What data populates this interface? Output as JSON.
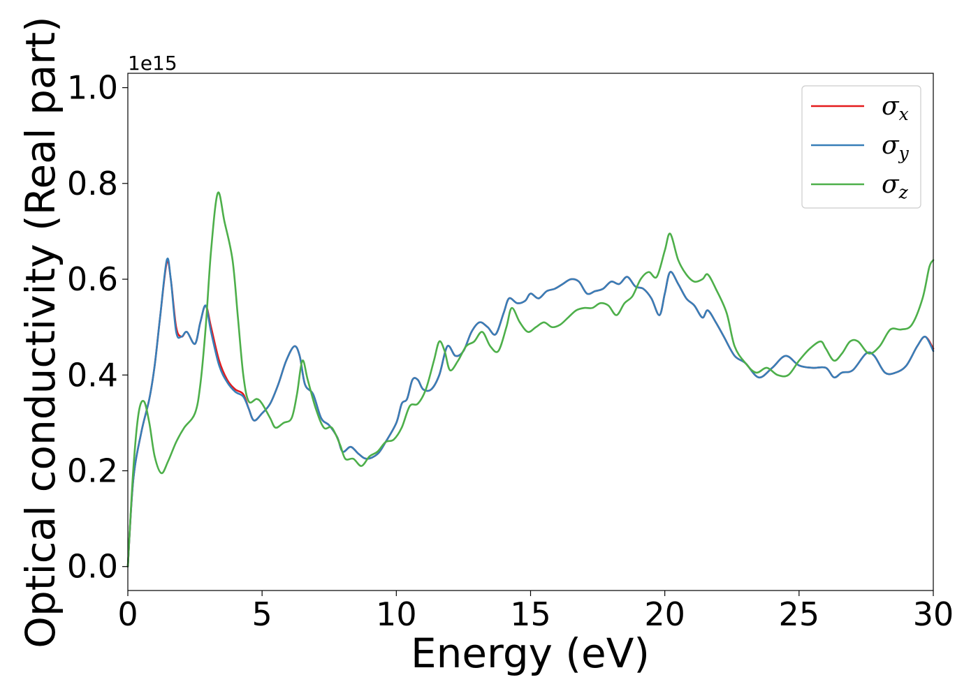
{
  "chart_data": {
    "type": "line",
    "xlabel": "Energy (eV)",
    "ylabel": "Optical conductivity (Real part)",
    "y_offset_label": "1e15",
    "xlim": [
      0,
      30
    ],
    "ylim": [
      -0.05,
      1.03
    ],
    "xticks": [
      0,
      5,
      10,
      15,
      20,
      25,
      30
    ],
    "xtick_labels": [
      "0",
      "5",
      "10",
      "15",
      "20",
      "25",
      "30"
    ],
    "yticks": [
      0.0,
      0.2,
      0.4,
      0.6,
      0.8,
      1.0
    ],
    "ytick_labels": [
      "0.0",
      "0.2",
      "0.4",
      "0.6",
      "0.8",
      "1.0"
    ],
    "grid": false,
    "legend_position": "top-right",
    "series": [
      {
        "name": "σx",
        "sym": "σ",
        "sub": "x",
        "color": "#e41a1c",
        "points": [
          [
            0,
            0.0
          ],
          [
            0.2,
            0.18
          ],
          [
            0.5,
            0.28
          ],
          [
            0.8,
            0.35
          ],
          [
            1.0,
            0.42
          ],
          [
            1.2,
            0.52
          ],
          [
            1.45,
            0.635
          ],
          [
            1.6,
            0.6
          ],
          [
            1.8,
            0.5
          ],
          [
            2.0,
            0.48
          ],
          [
            2.2,
            0.49
          ],
          [
            2.5,
            0.465
          ],
          [
            2.7,
            0.51
          ],
          [
            2.9,
            0.545
          ],
          [
            3.1,
            0.5
          ],
          [
            3.4,
            0.43
          ],
          [
            3.7,
            0.39
          ],
          [
            4.0,
            0.37
          ],
          [
            4.3,
            0.36
          ],
          [
            4.5,
            0.33
          ],
          [
            4.7,
            0.305
          ],
          [
            5.0,
            0.32
          ],
          [
            5.3,
            0.34
          ],
          [
            5.6,
            0.38
          ],
          [
            5.9,
            0.43
          ],
          [
            6.2,
            0.46
          ],
          [
            6.4,
            0.44
          ],
          [
            6.6,
            0.38
          ],
          [
            6.9,
            0.36
          ],
          [
            7.2,
            0.31
          ],
          [
            7.5,
            0.295
          ],
          [
            7.8,
            0.27
          ],
          [
            8.0,
            0.24
          ],
          [
            8.3,
            0.25
          ],
          [
            8.6,
            0.235
          ],
          [
            8.9,
            0.225
          ],
          [
            9.3,
            0.235
          ],
          [
            9.6,
            0.26
          ],
          [
            10.0,
            0.3
          ],
          [
            10.2,
            0.34
          ],
          [
            10.4,
            0.35
          ],
          [
            10.6,
            0.39
          ],
          [
            10.8,
            0.39
          ],
          [
            11.0,
            0.37
          ],
          [
            11.3,
            0.37
          ],
          [
            11.6,
            0.4
          ],
          [
            11.9,
            0.46
          ],
          [
            12.2,
            0.44
          ],
          [
            12.5,
            0.45
          ],
          [
            12.8,
            0.49
          ],
          [
            13.1,
            0.51
          ],
          [
            13.4,
            0.5
          ],
          [
            13.7,
            0.485
          ],
          [
            14.0,
            0.53
          ],
          [
            14.2,
            0.56
          ],
          [
            14.5,
            0.55
          ],
          [
            14.8,
            0.555
          ],
          [
            15.0,
            0.57
          ],
          [
            15.3,
            0.56
          ],
          [
            15.6,
            0.575
          ],
          [
            15.9,
            0.58
          ],
          [
            16.2,
            0.59
          ],
          [
            16.5,
            0.6
          ],
          [
            16.8,
            0.595
          ],
          [
            17.1,
            0.57
          ],
          [
            17.4,
            0.575
          ],
          [
            17.7,
            0.58
          ],
          [
            18.0,
            0.595
          ],
          [
            18.3,
            0.59
          ],
          [
            18.6,
            0.605
          ],
          [
            18.9,
            0.585
          ],
          [
            19.2,
            0.58
          ],
          [
            19.5,
            0.56
          ],
          [
            19.8,
            0.525
          ],
          [
            20.0,
            0.57
          ],
          [
            20.2,
            0.615
          ],
          [
            20.5,
            0.59
          ],
          [
            20.8,
            0.56
          ],
          [
            21.1,
            0.545
          ],
          [
            21.4,
            0.52
          ],
          [
            21.6,
            0.535
          ],
          [
            21.9,
            0.51
          ],
          [
            22.2,
            0.48
          ],
          [
            22.6,
            0.44
          ],
          [
            23.0,
            0.425
          ],
          [
            23.5,
            0.395
          ],
          [
            24.0,
            0.415
          ],
          [
            24.5,
            0.44
          ],
          [
            25.0,
            0.42
          ],
          [
            25.5,
            0.415
          ],
          [
            26.0,
            0.415
          ],
          [
            26.3,
            0.395
          ],
          [
            26.6,
            0.405
          ],
          [
            27.0,
            0.41
          ],
          [
            27.5,
            0.445
          ],
          [
            27.8,
            0.44
          ],
          [
            28.2,
            0.405
          ],
          [
            28.6,
            0.405
          ],
          [
            29.0,
            0.42
          ],
          [
            29.4,
            0.46
          ],
          [
            29.7,
            0.48
          ],
          [
            30.0,
            0.455
          ]
        ]
      },
      {
        "name": "σy",
        "sym": "σ",
        "sub": "y",
        "color": "#377eb8",
        "points": [
          [
            0,
            0.0
          ],
          [
            0.2,
            0.18
          ],
          [
            0.5,
            0.28
          ],
          [
            0.8,
            0.35
          ],
          [
            1.0,
            0.42
          ],
          [
            1.2,
            0.52
          ],
          [
            1.45,
            0.64
          ],
          [
            1.6,
            0.6
          ],
          [
            1.8,
            0.49
          ],
          [
            2.0,
            0.48
          ],
          [
            2.2,
            0.49
          ],
          [
            2.5,
            0.465
          ],
          [
            2.7,
            0.51
          ],
          [
            2.9,
            0.545
          ],
          [
            3.1,
            0.49
          ],
          [
            3.4,
            0.42
          ],
          [
            3.7,
            0.385
          ],
          [
            4.0,
            0.365
          ],
          [
            4.3,
            0.355
          ],
          [
            4.5,
            0.33
          ],
          [
            4.7,
            0.305
          ],
          [
            5.0,
            0.32
          ],
          [
            5.3,
            0.34
          ],
          [
            5.6,
            0.38
          ],
          [
            5.9,
            0.43
          ],
          [
            6.2,
            0.46
          ],
          [
            6.4,
            0.44
          ],
          [
            6.6,
            0.38
          ],
          [
            6.9,
            0.36
          ],
          [
            7.2,
            0.31
          ],
          [
            7.5,
            0.295
          ],
          [
            7.8,
            0.27
          ],
          [
            8.0,
            0.24
          ],
          [
            8.3,
            0.25
          ],
          [
            8.6,
            0.235
          ],
          [
            8.9,
            0.225
          ],
          [
            9.3,
            0.235
          ],
          [
            9.6,
            0.26
          ],
          [
            10.0,
            0.3
          ],
          [
            10.2,
            0.34
          ],
          [
            10.4,
            0.35
          ],
          [
            10.6,
            0.39
          ],
          [
            10.8,
            0.39
          ],
          [
            11.0,
            0.37
          ],
          [
            11.3,
            0.37
          ],
          [
            11.6,
            0.4
          ],
          [
            11.9,
            0.46
          ],
          [
            12.2,
            0.44
          ],
          [
            12.5,
            0.45
          ],
          [
            12.8,
            0.49
          ],
          [
            13.1,
            0.51
          ],
          [
            13.4,
            0.5
          ],
          [
            13.7,
            0.485
          ],
          [
            14.0,
            0.53
          ],
          [
            14.2,
            0.56
          ],
          [
            14.5,
            0.55
          ],
          [
            14.8,
            0.555
          ],
          [
            15.0,
            0.57
          ],
          [
            15.3,
            0.56
          ],
          [
            15.6,
            0.575
          ],
          [
            15.9,
            0.58
          ],
          [
            16.2,
            0.59
          ],
          [
            16.5,
            0.6
          ],
          [
            16.8,
            0.595
          ],
          [
            17.1,
            0.57
          ],
          [
            17.4,
            0.575
          ],
          [
            17.7,
            0.58
          ],
          [
            18.0,
            0.595
          ],
          [
            18.3,
            0.59
          ],
          [
            18.6,
            0.605
          ],
          [
            18.9,
            0.585
          ],
          [
            19.2,
            0.58
          ],
          [
            19.5,
            0.56
          ],
          [
            19.8,
            0.525
          ],
          [
            20.0,
            0.57
          ],
          [
            20.2,
            0.615
          ],
          [
            20.5,
            0.59
          ],
          [
            20.8,
            0.56
          ],
          [
            21.1,
            0.545
          ],
          [
            21.4,
            0.52
          ],
          [
            21.6,
            0.535
          ],
          [
            21.9,
            0.51
          ],
          [
            22.2,
            0.48
          ],
          [
            22.6,
            0.44
          ],
          [
            23.0,
            0.425
          ],
          [
            23.5,
            0.395
          ],
          [
            24.0,
            0.415
          ],
          [
            24.5,
            0.44
          ],
          [
            25.0,
            0.42
          ],
          [
            25.5,
            0.415
          ],
          [
            26.0,
            0.415
          ],
          [
            26.3,
            0.395
          ],
          [
            26.6,
            0.405
          ],
          [
            27.0,
            0.41
          ],
          [
            27.5,
            0.445
          ],
          [
            27.8,
            0.44
          ],
          [
            28.2,
            0.405
          ],
          [
            28.6,
            0.405
          ],
          [
            29.0,
            0.42
          ],
          [
            29.4,
            0.46
          ],
          [
            29.7,
            0.48
          ],
          [
            30.0,
            0.45
          ]
        ]
      },
      {
        "name": "σz",
        "sym": "σ",
        "sub": "z",
        "color": "#4daf4a",
        "points": [
          [
            0,
            0.0
          ],
          [
            0.2,
            0.2
          ],
          [
            0.4,
            0.32
          ],
          [
            0.6,
            0.345
          ],
          [
            0.8,
            0.3
          ],
          [
            1.0,
            0.23
          ],
          [
            1.25,
            0.195
          ],
          [
            1.5,
            0.22
          ],
          [
            1.8,
            0.26
          ],
          [
            2.1,
            0.29
          ],
          [
            2.5,
            0.32
          ],
          [
            2.7,
            0.38
          ],
          [
            2.9,
            0.5
          ],
          [
            3.1,
            0.66
          ],
          [
            3.35,
            0.78
          ],
          [
            3.6,
            0.72
          ],
          [
            3.9,
            0.64
          ],
          [
            4.1,
            0.52
          ],
          [
            4.3,
            0.4
          ],
          [
            4.5,
            0.345
          ],
          [
            4.8,
            0.35
          ],
          [
            5.0,
            0.34
          ],
          [
            5.3,
            0.31
          ],
          [
            5.5,
            0.29
          ],
          [
            5.8,
            0.3
          ],
          [
            6.1,
            0.31
          ],
          [
            6.3,
            0.36
          ],
          [
            6.5,
            0.43
          ],
          [
            6.7,
            0.39
          ],
          [
            7.0,
            0.33
          ],
          [
            7.3,
            0.29
          ],
          [
            7.6,
            0.29
          ],
          [
            7.9,
            0.255
          ],
          [
            8.1,
            0.225
          ],
          [
            8.4,
            0.225
          ],
          [
            8.7,
            0.21
          ],
          [
            9.0,
            0.23
          ],
          [
            9.3,
            0.24
          ],
          [
            9.6,
            0.26
          ],
          [
            9.9,
            0.265
          ],
          [
            10.2,
            0.29
          ],
          [
            10.5,
            0.335
          ],
          [
            10.8,
            0.34
          ],
          [
            11.1,
            0.37
          ],
          [
            11.4,
            0.43
          ],
          [
            11.6,
            0.47
          ],
          [
            11.8,
            0.45
          ],
          [
            12.0,
            0.41
          ],
          [
            12.3,
            0.43
          ],
          [
            12.6,
            0.46
          ],
          [
            12.9,
            0.47
          ],
          [
            13.2,
            0.49
          ],
          [
            13.5,
            0.46
          ],
          [
            13.8,
            0.45
          ],
          [
            14.1,
            0.5
          ],
          [
            14.3,
            0.54
          ],
          [
            14.6,
            0.51
          ],
          [
            14.9,
            0.49
          ],
          [
            15.2,
            0.5
          ],
          [
            15.5,
            0.51
          ],
          [
            15.8,
            0.5
          ],
          [
            16.1,
            0.505
          ],
          [
            16.4,
            0.52
          ],
          [
            16.7,
            0.535
          ],
          [
            17.0,
            0.54
          ],
          [
            17.3,
            0.54
          ],
          [
            17.6,
            0.55
          ],
          [
            17.9,
            0.545
          ],
          [
            18.2,
            0.525
          ],
          [
            18.5,
            0.55
          ],
          [
            18.8,
            0.565
          ],
          [
            19.1,
            0.6
          ],
          [
            19.4,
            0.615
          ],
          [
            19.7,
            0.605
          ],
          [
            20.0,
            0.66
          ],
          [
            20.2,
            0.695
          ],
          [
            20.5,
            0.64
          ],
          [
            20.8,
            0.61
          ],
          [
            21.1,
            0.595
          ],
          [
            21.4,
            0.6
          ],
          [
            21.6,
            0.61
          ],
          [
            21.9,
            0.58
          ],
          [
            22.3,
            0.53
          ],
          [
            22.6,
            0.46
          ],
          [
            23.0,
            0.425
          ],
          [
            23.4,
            0.405
          ],
          [
            23.8,
            0.415
          ],
          [
            24.2,
            0.4
          ],
          [
            24.6,
            0.4
          ],
          [
            25.0,
            0.43
          ],
          [
            25.4,
            0.455
          ],
          [
            25.8,
            0.47
          ],
          [
            26.0,
            0.455
          ],
          [
            26.3,
            0.43
          ],
          [
            26.6,
            0.445
          ],
          [
            26.9,
            0.47
          ],
          [
            27.2,
            0.47
          ],
          [
            27.6,
            0.445
          ],
          [
            28.0,
            0.46
          ],
          [
            28.4,
            0.495
          ],
          [
            28.8,
            0.495
          ],
          [
            29.2,
            0.505
          ],
          [
            29.6,
            0.56
          ],
          [
            29.85,
            0.625
          ],
          [
            30.0,
            0.64
          ]
        ]
      }
    ]
  }
}
